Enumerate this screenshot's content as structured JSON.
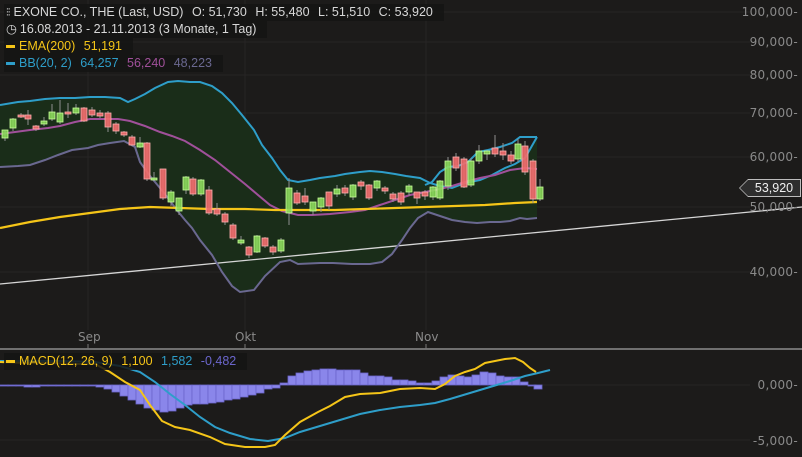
{
  "header": {
    "title_line": "EXONE CO., THE (Last, USD)",
    "open_label": "O: 51,730",
    "high_label": "H: 55,480",
    "low_label": "L: 51,510",
    "close_label": "C: 53,920",
    "date_range": "16.08.2013 - 21.11.2013 (3 Monate, 1 Tag)",
    "ema_label": "EMA(200)",
    "ema_value": "51,191",
    "bb_label": "BB(20, 2)",
    "bb_upper": "64,257",
    "bb_mid": "56,240",
    "bb_lower": "48,223",
    "macd_label": "MACD(12, 26, 9)",
    "macd_value": "1,100",
    "macd_signal": "1,582",
    "macd_hist": "-0,482"
  },
  "price_tag": "53,920",
  "y_axis": [
    "100,000-",
    "90,000-",
    "80,000-",
    "70,000-",
    "60,000-",
    "50,000-",
    "40,000-"
  ],
  "macd_axis": [
    "0,000-",
    "-5,000-"
  ],
  "x_axis": [
    "Sep",
    "Okt",
    "Nov"
  ],
  "colors": {
    "background": "#1c1b1a",
    "up_candle": "#8de05a",
    "down_candle": "#f26b6b",
    "ema": "#f5c518",
    "bb_upper": "#2e9ec9",
    "bb_mid": "#a0509a",
    "bb_lower": "#6a6890",
    "bb_fill": "#1b2e1b",
    "macd": "#f5c518",
    "signal": "#2e9ec9",
    "histogram": "#8a86ea"
  },
  "chart_data": [
    {
      "type": "candlestick",
      "title": "EXONE CO., THE (Last, USD)",
      "subtitle": "16.08.2013 - 21.11.2013 (3 Monate, 1 Tag)",
      "x_ticks": [
        "Sep",
        "Okt",
        "Nov"
      ],
      "y_ticks": [
        40000,
        50000,
        60000,
        70000,
        80000,
        90000,
        100000
      ],
      "y_scale": "log",
      "last": {
        "open": 51730,
        "high": 55480,
        "low": 51510,
        "close": 53920
      },
      "series": [
        {
          "name": "EMA(200)",
          "last": 51191
        },
        {
          "name": "BB upper",
          "last": 64257
        },
        {
          "name": "BB middle",
          "last": 56240
        },
        {
          "name": "BB lower",
          "last": 48223
        }
      ],
      "candles_approx_close": [
        63000,
        66500,
        68500,
        68200,
        67000,
        64500,
        65500,
        69000,
        70000,
        70500,
        69500,
        70000,
        68500,
        68000,
        65500,
        63000,
        61000,
        60500,
        56500,
        50500,
        51500,
        55500,
        52000,
        54000,
        49000,
        48500,
        47500,
        43000,
        43500,
        45000,
        42500,
        42500,
        45000,
        51500,
        52000,
        50500,
        52000,
        53000,
        51000,
        52500,
        53000,
        49500,
        50500,
        51500,
        51000,
        51000,
        50500,
        54000,
        58500,
        57500,
        53500,
        59000,
        60500,
        61500,
        59500,
        58500,
        62500,
        63500,
        55500,
        53920
      ]
    },
    {
      "type": "line+bar",
      "title": "MACD(12, 26, 9)",
      "y_ticks": [
        -5,
        0
      ],
      "series": [
        {
          "name": "MACD",
          "last": 1.1
        },
        {
          "name": "Signal",
          "last": 1.582
        },
        {
          "name": "Histogram",
          "last": -0.482
        }
      ]
    }
  ]
}
